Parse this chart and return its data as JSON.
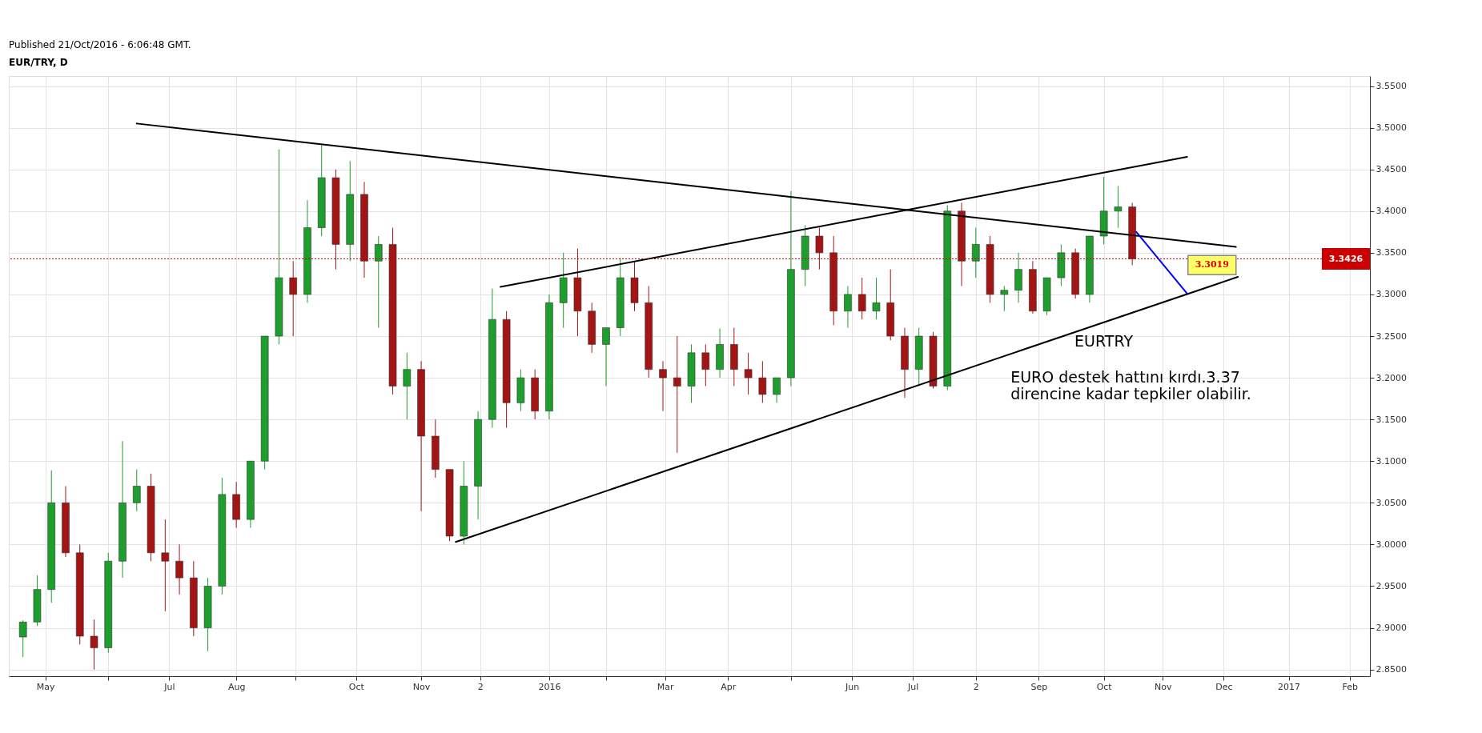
{
  "chart_data": {
    "type": "candlestick",
    "title": "EUR/TRY, D",
    "x": [
      "2015-04-20",
      "2015-04-27",
      "2015-05-04",
      "2015-05-11",
      "2015-05-18",
      "2015-05-25",
      "2015-06-01",
      "2015-06-08",
      "2015-06-15",
      "2015-06-22",
      "2015-06-29",
      "2015-07-06",
      "2015-07-13",
      "2015-07-20",
      "2015-07-27",
      "2015-08-03",
      "2015-08-10",
      "2015-08-17",
      "2015-08-24",
      "2015-08-31",
      "2015-09-07",
      "2015-09-14",
      "2015-09-21",
      "2015-09-28",
      "2015-10-05",
      "2015-10-12",
      "2015-10-19",
      "2015-10-26",
      "2015-11-02",
      "2015-11-09",
      "2015-11-16",
      "2015-11-23",
      "2015-11-30",
      "2015-12-07",
      "2015-12-14",
      "2015-12-21",
      "2015-12-28",
      "2016-01-04",
      "2016-01-11",
      "2016-01-18",
      "2016-01-25",
      "2016-02-01",
      "2016-02-08",
      "2016-02-15",
      "2016-02-22",
      "2016-02-29",
      "2016-03-07",
      "2016-03-14",
      "2016-03-21",
      "2016-03-28",
      "2016-04-04",
      "2016-04-11",
      "2016-04-18",
      "2016-04-25",
      "2016-05-02",
      "2016-05-09",
      "2016-05-16",
      "2016-05-23",
      "2016-05-30",
      "2016-06-06",
      "2016-06-13",
      "2016-06-20",
      "2016-06-27",
      "2016-07-04",
      "2016-07-11",
      "2016-07-18",
      "2016-07-25",
      "2016-08-01",
      "2016-08-08",
      "2016-08-15",
      "2016-08-22",
      "2016-08-29",
      "2016-09-05",
      "2016-09-12",
      "2016-09-19",
      "2016-09-26",
      "2016-10-03",
      "2016-10-10",
      "2016-10-17"
    ],
    "ohlc": [
      [
        2.889,
        2.909,
        2.865,
        2.907
      ],
      [
        2.907,
        2.963,
        2.902,
        2.946
      ],
      [
        2.946,
        3.089,
        2.93,
        3.05
      ],
      [
        3.05,
        3.07,
        2.985,
        2.99
      ],
      [
        2.99,
        3.0,
        2.88,
        2.89
      ],
      [
        2.89,
        2.91,
        2.85,
        2.876
      ],
      [
        2.876,
        2.99,
        2.87,
        2.98
      ],
      [
        2.98,
        3.124,
        2.96,
        3.05
      ],
      [
        3.05,
        3.09,
        3.04,
        3.07
      ],
      [
        3.07,
        3.085,
        2.98,
        2.99
      ],
      [
        2.99,
        3.03,
        2.92,
        2.98
      ],
      [
        2.98,
        3.0,
        2.94,
        2.96
      ],
      [
        2.96,
        2.98,
        2.89,
        2.9
      ],
      [
        2.9,
        2.96,
        2.872,
        2.95
      ],
      [
        2.95,
        3.08,
        2.94,
        3.06
      ],
      [
        3.06,
        3.075,
        3.02,
        3.03
      ],
      [
        3.03,
        3.1,
        3.02,
        3.1
      ],
      [
        3.1,
        3.25,
        3.09,
        3.25
      ],
      [
        3.25,
        3.474,
        3.24,
        3.32
      ],
      [
        3.32,
        3.34,
        3.25,
        3.3
      ],
      [
        3.3,
        3.413,
        3.29,
        3.38
      ],
      [
        3.38,
        3.48,
        3.37,
        3.44
      ],
      [
        3.44,
        3.45,
        3.33,
        3.36
      ],
      [
        3.36,
        3.46,
        3.34,
        3.42
      ],
      [
        3.42,
        3.435,
        3.32,
        3.34
      ],
      [
        3.34,
        3.37,
        3.26,
        3.36
      ],
      [
        3.36,
        3.38,
        3.18,
        3.19
      ],
      [
        3.19,
        3.23,
        3.15,
        3.21
      ],
      [
        3.21,
        3.22,
        3.04,
        3.13
      ],
      [
        3.13,
        3.15,
        3.08,
        3.09
      ],
      [
        3.09,
        3.09,
        3.004,
        3.01
      ],
      [
        3.01,
        3.1,
        3.0,
        3.07
      ],
      [
        3.07,
        3.16,
        3.03,
        3.15
      ],
      [
        3.15,
        3.307,
        3.14,
        3.27
      ],
      [
        3.27,
        3.28,
        3.14,
        3.17
      ],
      [
        3.17,
        3.21,
        3.16,
        3.2
      ],
      [
        3.2,
        3.21,
        3.15,
        3.16
      ],
      [
        3.16,
        3.3,
        3.15,
        3.29
      ],
      [
        3.29,
        3.35,
        3.26,
        3.32
      ],
      [
        3.32,
        3.355,
        3.25,
        3.28
      ],
      [
        3.28,
        3.29,
        3.23,
        3.24
      ],
      [
        3.24,
        3.26,
        3.19,
        3.26
      ],
      [
        3.26,
        3.344,
        3.25,
        3.32
      ],
      [
        3.32,
        3.34,
        3.28,
        3.29
      ],
      [
        3.29,
        3.31,
        3.2,
        3.21
      ],
      [
        3.21,
        3.22,
        3.16,
        3.2
      ],
      [
        3.2,
        3.25,
        3.11,
        3.19
      ],
      [
        3.19,
        3.24,
        3.17,
        3.23
      ],
      [
        3.23,
        3.24,
        3.19,
        3.21
      ],
      [
        3.21,
        3.259,
        3.2,
        3.24
      ],
      [
        3.24,
        3.26,
        3.19,
        3.21
      ],
      [
        3.21,
        3.23,
        3.18,
        3.2
      ],
      [
        3.2,
        3.22,
        3.17,
        3.18
      ],
      [
        3.18,
        3.2,
        3.17,
        3.2
      ],
      [
        3.2,
        3.424,
        3.19,
        3.33
      ],
      [
        3.33,
        3.383,
        3.31,
        3.37
      ],
      [
        3.37,
        3.38,
        3.33,
        3.35
      ],
      [
        3.35,
        3.37,
        3.263,
        3.28
      ],
      [
        3.28,
        3.31,
        3.26,
        3.3
      ],
      [
        3.3,
        3.32,
        3.27,
        3.28
      ],
      [
        3.28,
        3.32,
        3.27,
        3.29
      ],
      [
        3.29,
        3.33,
        3.245,
        3.25
      ],
      [
        3.25,
        3.26,
        3.176,
        3.21
      ],
      [
        3.21,
        3.26,
        3.19,
        3.25
      ],
      [
        3.25,
        3.255,
        3.187,
        3.19
      ],
      [
        3.19,
        3.407,
        3.185,
        3.4
      ],
      [
        3.4,
        3.41,
        3.31,
        3.34
      ],
      [
        3.34,
        3.38,
        3.32,
        3.36
      ],
      [
        3.36,
        3.37,
        3.29,
        3.3
      ],
      [
        3.3,
        3.31,
        3.28,
        3.305
      ],
      [
        3.305,
        3.35,
        3.29,
        3.33
      ],
      [
        3.33,
        3.34,
        3.277,
        3.28
      ],
      [
        3.28,
        3.32,
        3.275,
        3.32
      ],
      [
        3.32,
        3.36,
        3.31,
        3.35
      ],
      [
        3.35,
        3.355,
        3.295,
        3.3
      ],
      [
        3.3,
        3.37,
        3.29,
        3.37
      ],
      [
        3.37,
        3.441,
        3.36,
        3.4
      ],
      [
        3.4,
        3.43,
        3.38,
        3.405
      ],
      [
        3.405,
        3.41,
        3.335,
        3.3426
      ]
    ],
    "colors": [
      "#1e9e2d",
      "#1e9e2d",
      "#1e9e2d",
      "#a31515",
      "#a31515",
      "#a31515",
      "#1e9e2d",
      "#1e9e2d",
      "#1e9e2d",
      "#a31515",
      "#a31515",
      "#a31515",
      "#a31515",
      "#1e9e2d",
      "#1e9e2d",
      "#a31515",
      "#1e9e2d",
      "#1e9e2d",
      "#1e9e2d",
      "#a31515",
      "#1e9e2d",
      "#1e9e2d",
      "#a31515",
      "#1e9e2d",
      "#a31515",
      "#1e9e2d",
      "#a31515",
      "#1e9e2d",
      "#a31515",
      "#a31515",
      "#a31515",
      "#1e9e2d",
      "#1e9e2d",
      "#1e9e2d",
      "#a31515",
      "#1e9e2d",
      "#a31515",
      "#1e9e2d",
      "#1e9e2d",
      "#a31515",
      "#a31515",
      "#1e9e2d",
      "#1e9e2d",
      "#a31515",
      "#a31515",
      "#a31515",
      "#a31515",
      "#1e9e2d",
      "#a31515",
      "#1e9e2d",
      "#a31515",
      "#a31515",
      "#a31515",
      "#1e9e2d",
      "#1e9e2d",
      "#1e9e2d",
      "#a31515",
      "#a31515",
      "#1e9e2d",
      "#a31515",
      "#1e9e2d",
      "#a31515",
      "#a31515",
      "#1e9e2d",
      "#a31515",
      "#1e9e2d",
      "#a31515",
      "#1e9e2d",
      "#a31515",
      "#1e9e2d",
      "#1e9e2d",
      "#a31515",
      "#1e9e2d",
      "#1e9e2d",
      "#a31515",
      "#1e9e2d",
      "#1e9e2d",
      "#1e9e2d",
      "#a31515"
    ],
    "series": [
      {
        "type": "line",
        "x": [
          "2015-06-15",
          "2016-12-07"
        ],
        "values": [
          3.505,
          3.357
        ],
        "color": "#000000"
      },
      {
        "type": "line",
        "x": [
          "2015-11-19",
          "2016-12-08"
        ],
        "values": [
          3.003,
          3.321
        ],
        "color": "#000000"
      },
      {
        "type": "line",
        "x": [
          "2015-12-11",
          "2016-11-13"
        ],
        "values": [
          3.309,
          3.465
        ],
        "color": "#000000"
      },
      {
        "type": "line",
        "x": [
          "2016-10-19",
          "2016-11-13"
        ],
        "values": [
          3.375,
          3.301
        ],
        "color": "#0000ff"
      }
    ],
    "xlim": [
      "2015-04-15",
      "2017-02-09"
    ],
    "xticks": [
      {
        "value": "2015-05-01",
        "label": "May"
      },
      {
        "value": "2015-06-01",
        "label": null
      },
      {
        "value": "2015-07-01",
        "label": "Jul"
      },
      {
        "value": "2015-08-03",
        "label": "Aug"
      },
      {
        "value": "2015-09-01",
        "label": null
      },
      {
        "value": "2015-10-01",
        "label": "Oct"
      },
      {
        "value": "2015-11-02",
        "label": "Nov"
      },
      {
        "value": "2015-12-01",
        "label": "2"
      },
      {
        "value": "2016-01-04",
        "label": "2016"
      },
      {
        "value": "2016-02-01",
        "label": null
      },
      {
        "value": "2016-03-01",
        "label": "Mar"
      },
      {
        "value": "2016-04-01",
        "label": "Apr"
      },
      {
        "value": "2016-05-02",
        "label": null
      },
      {
        "value": "2016-06-01",
        "label": "Jun"
      },
      {
        "value": "2016-07-01",
        "label": "Jul"
      },
      {
        "value": "2016-08-01",
        "label": "2"
      },
      {
        "value": "2016-09-01",
        "label": "Sep"
      },
      {
        "value": "2016-10-03",
        "label": "Oct"
      },
      {
        "value": "2016-11-01",
        "label": "Nov"
      },
      {
        "value": "2016-12-01",
        "label": "Dec"
      },
      {
        "value": "2017-01-02",
        "label": "2017"
      },
      {
        "value": "2017-02-01",
        "label": "Feb"
      }
    ],
    "ylim": [
      2.842,
      3.562
    ],
    "yticks": [
      {
        "value": 2.85,
        "label": "2.8500"
      },
      {
        "value": 2.9,
        "label": "2.9000"
      },
      {
        "value": 2.95,
        "label": "2.9500"
      },
      {
        "value": 3.0,
        "label": "3.0000"
      },
      {
        "value": 3.05,
        "label": "3.0500"
      },
      {
        "value": 3.1,
        "label": "3.1000"
      },
      {
        "value": 3.15,
        "label": "3.1500"
      },
      {
        "value": 3.2,
        "label": "3.2000"
      },
      {
        "value": 3.25,
        "label": "3.2500"
      },
      {
        "value": 3.3,
        "label": "3.3000"
      },
      {
        "value": 3.35,
        "label": "3.3500"
      },
      {
        "value": 3.4,
        "label": "3.4000"
      },
      {
        "value": 3.45,
        "label": "3.4500"
      },
      {
        "value": 3.5,
        "label": "3.5000"
      },
      {
        "value": 3.55,
        "label": "3.5500"
      }
    ],
    "grid": true,
    "ref_lines": [
      {
        "axis": "y",
        "value": 3.3426,
        "label": "3.3426",
        "color": "#cc0000",
        "line_style": "dotted"
      }
    ],
    "annotations": [
      "Published 21/Oct/2016 - 6:06:48 GMT.",
      "3.3019",
      "EURTRY",
      "EURO destek hattını kırdı.3.37\ndirencine kadar tepkiler olabilir."
    ]
  }
}
